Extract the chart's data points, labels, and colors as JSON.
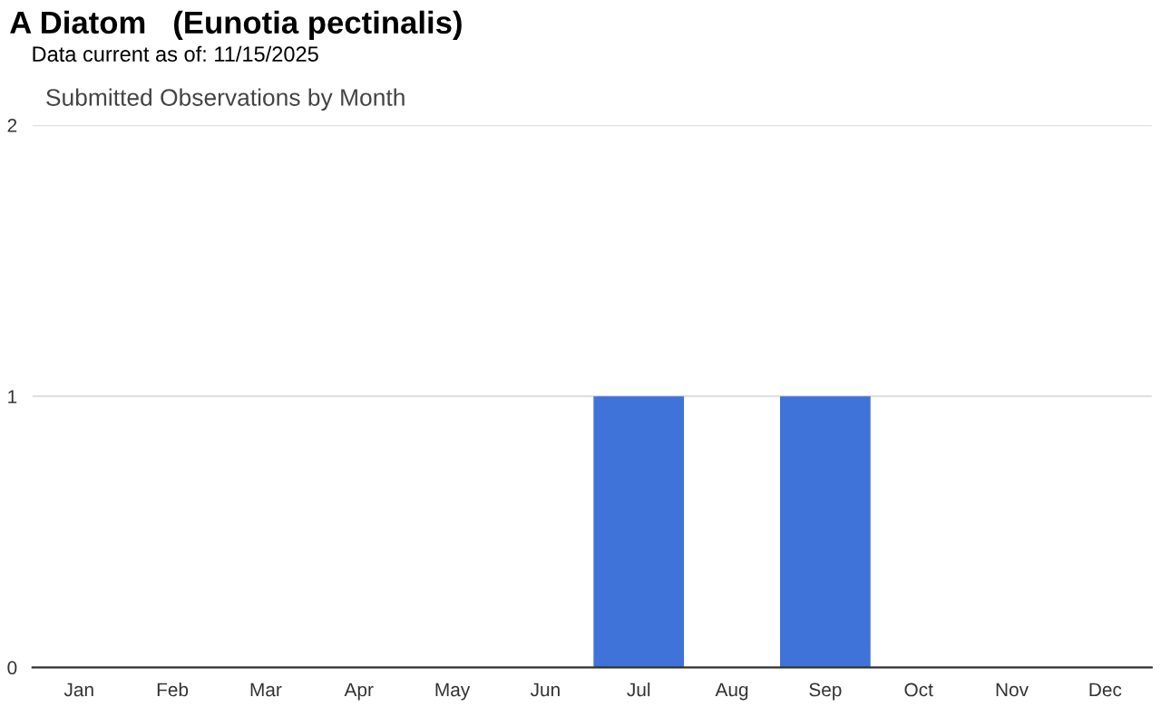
{
  "chart_data": {
    "type": "bar",
    "title": "A Diatom   (Eunotia pectinalis)",
    "subtitle": "Data current as of: 11/15/2025",
    "annotations": [
      "Submitted Observations by Month"
    ],
    "categories": [
      "Jan",
      "Feb",
      "Mar",
      "Apr",
      "May",
      "Jun",
      "Jul",
      "Aug",
      "Sep",
      "Oct",
      "Nov",
      "Dec"
    ],
    "values": [
      0,
      0,
      0,
      0,
      0,
      0,
      1,
      0,
      1,
      0,
      0,
      0
    ],
    "color": "#3f73d9",
    "ylim": [
      0,
      2
    ],
    "yticks": [
      0,
      1,
      2
    ],
    "grid": "y",
    "legend": false
  }
}
